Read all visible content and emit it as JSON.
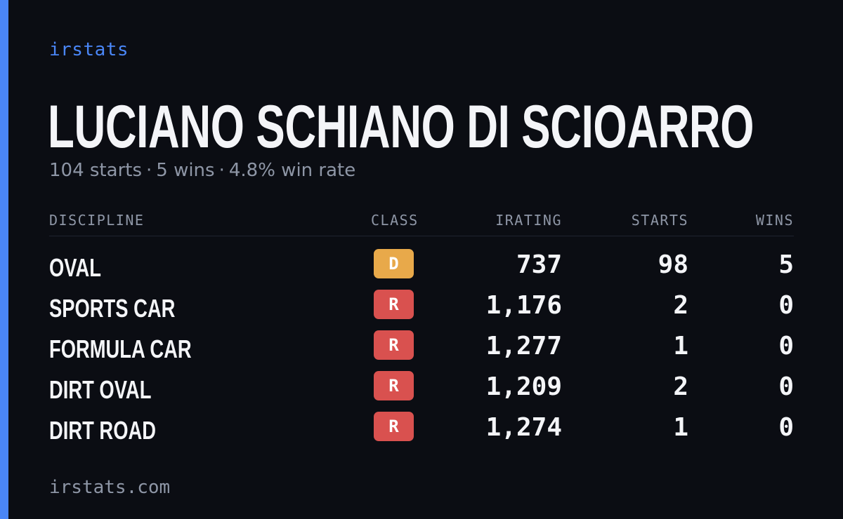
{
  "brand": {
    "name": "irstats",
    "accent_color": "#4a86f6"
  },
  "driver": {
    "name": "LUCIANO SCHIANO DI SCIOARRO",
    "starts_text": "104 starts",
    "wins_text": "5 wins",
    "win_rate_text": "4.8% win rate",
    "separator": "·"
  },
  "table": {
    "headers": {
      "discipline": "DISCIPLINE",
      "class": "CLASS",
      "irating": "IRATING",
      "starts": "STARTS",
      "wins": "WINS"
    },
    "rows": [
      {
        "discipline": "OVAL",
        "class": "D",
        "class_color": "#e8a94a",
        "irating": "737",
        "starts": "98",
        "wins": "5"
      },
      {
        "discipline": "SPORTS CAR",
        "class": "R",
        "class_color": "#d9514f",
        "irating": "1,176",
        "starts": "2",
        "wins": "0"
      },
      {
        "discipline": "FORMULA CAR",
        "class": "R",
        "class_color": "#d9514f",
        "irating": "1,277",
        "starts": "1",
        "wins": "0"
      },
      {
        "discipline": "DIRT OVAL",
        "class": "R",
        "class_color": "#d9514f",
        "irating": "1,209",
        "starts": "2",
        "wins": "0"
      },
      {
        "discipline": "DIRT ROAD",
        "class": "R",
        "class_color": "#d9514f",
        "irating": "1,274",
        "starts": "1",
        "wins": "0"
      }
    ]
  },
  "footer": {
    "url": "irstats.com"
  }
}
